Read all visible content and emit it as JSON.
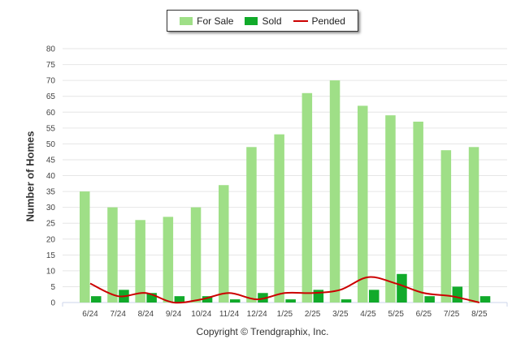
{
  "chart_data": {
    "type": "bar",
    "ylabel": "Number of Homes",
    "xlabel": "",
    "ylim": [
      0,
      80
    ],
    "ytick_step": 5,
    "grid": true,
    "legend_position": "top-center",
    "categories": [
      "6/24",
      "7/24",
      "8/24",
      "9/24",
      "10/24",
      "11/24",
      "12/24",
      "1/25",
      "2/25",
      "3/25",
      "4/25",
      "5/25",
      "6/25",
      "7/25",
      "8/25"
    ],
    "series": [
      {
        "name": "For Sale",
        "type": "bar",
        "color": "#9fdf87",
        "values": [
          35,
          30,
          26,
          27,
          30,
          37,
          49,
          53,
          66,
          70,
          62,
          59,
          57,
          48,
          49
        ]
      },
      {
        "name": "Sold",
        "type": "bar",
        "color": "#11aa2a",
        "values": [
          2,
          4,
          3,
          2,
          2,
          1,
          3,
          1,
          4,
          1,
          4,
          9,
          2,
          5,
          2
        ]
      },
      {
        "name": "Pended",
        "type": "line",
        "color": "#cc0000",
        "values": [
          6,
          2,
          3,
          0,
          1,
          3,
          1,
          3,
          3,
          4,
          8,
          6,
          3,
          2,
          0
        ]
      }
    ]
  },
  "footer": {
    "copyright": "Copyright © Trendgraphix, Inc."
  }
}
